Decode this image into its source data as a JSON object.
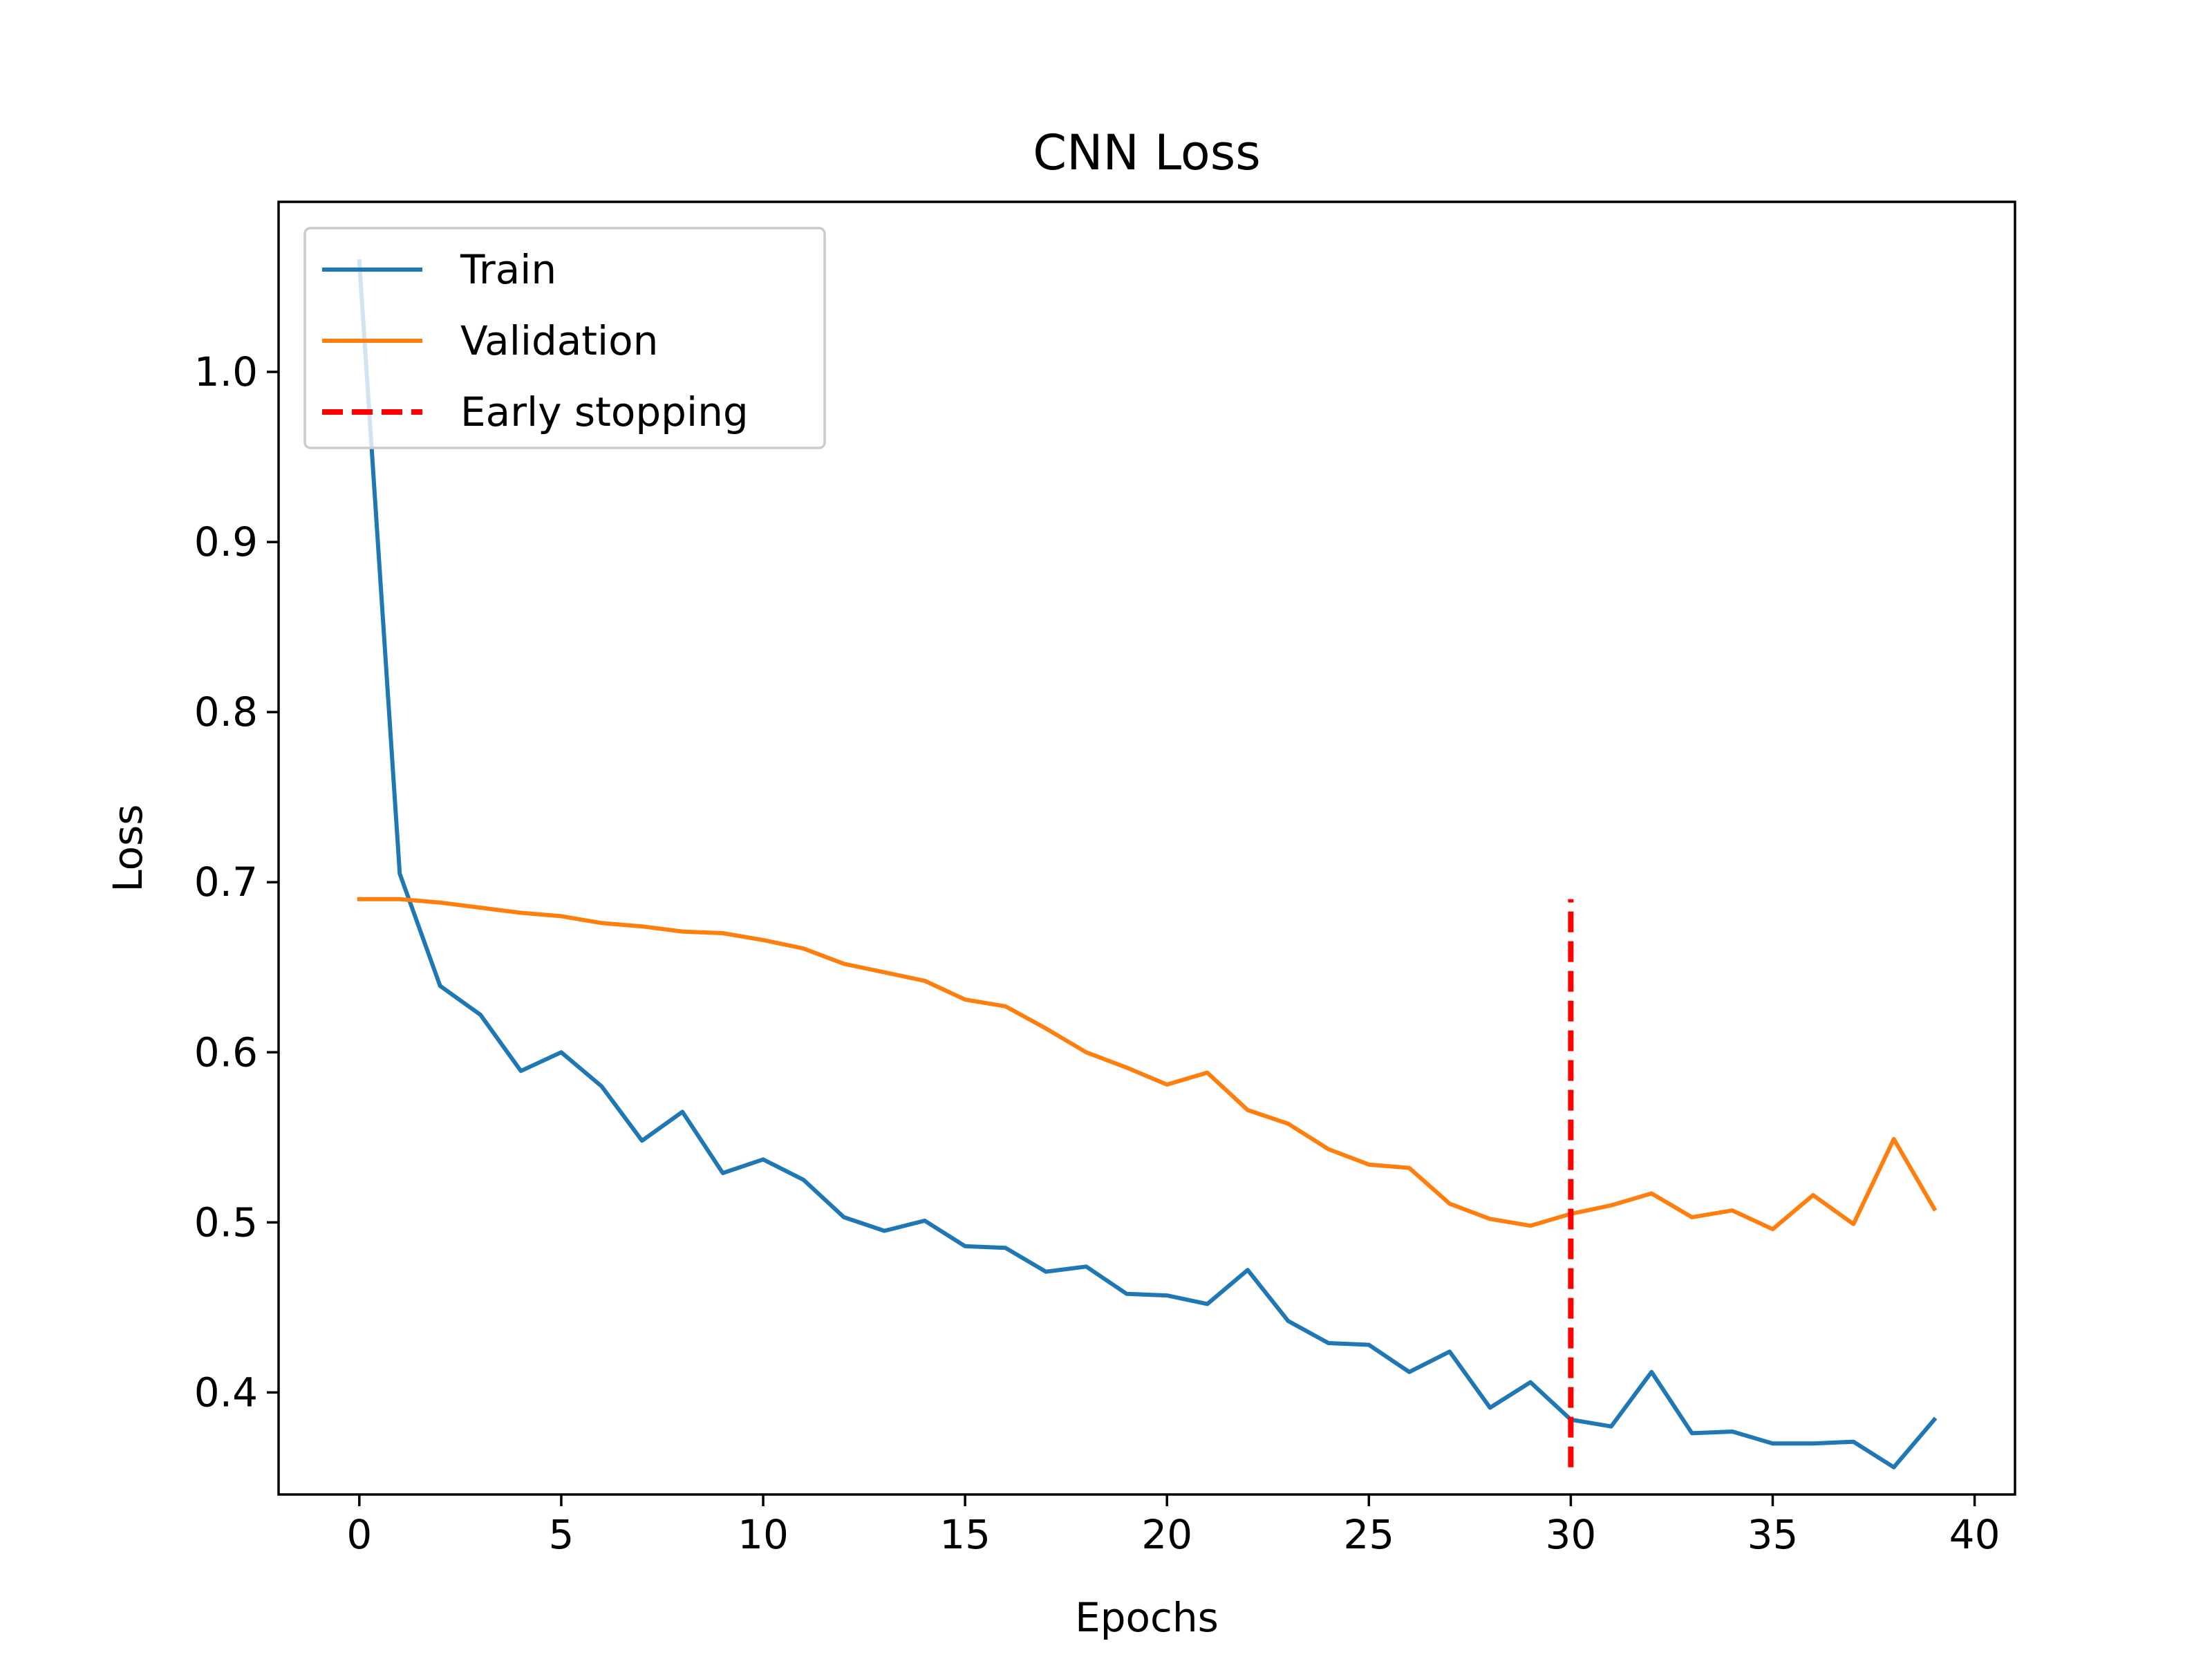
{
  "chart_data": {
    "type": "line",
    "title": "CNN Loss",
    "xlabel": "Epochs",
    "ylabel": "Loss",
    "xlim": [
      -2,
      41
    ],
    "ylim": [
      0.34,
      1.1
    ],
    "xticks": [
      0,
      5,
      10,
      15,
      20,
      25,
      30,
      35,
      40
    ],
    "xtick_labels": [
      "0",
      "5",
      "10",
      "15",
      "20",
      "25",
      "30",
      "35",
      "40"
    ],
    "yticks": [
      0.4,
      0.5,
      0.6,
      0.7,
      0.8,
      0.9,
      1.0
    ],
    "ytick_labels": [
      "0.4",
      "0.5",
      "0.6",
      "0.7",
      "0.8",
      "0.9",
      "1.0"
    ],
    "grid": false,
    "legend_position": "upper-left",
    "series": [
      {
        "name": "Train",
        "color": "#1f77b4",
        "x": [
          0,
          1,
          2,
          3,
          4,
          5,
          6,
          7,
          8,
          9,
          10,
          11,
          12,
          13,
          14,
          15,
          16,
          17,
          18,
          19,
          20,
          21,
          22,
          23,
          24,
          25,
          26,
          27,
          28,
          29,
          30,
          31,
          32,
          33,
          34,
          35,
          36,
          37,
          38,
          39
        ],
        "y": [
          1.065,
          0.705,
          0.639,
          0.622,
          0.589,
          0.6,
          0.58,
          0.548,
          0.565,
          0.529,
          0.537,
          0.525,
          0.503,
          0.495,
          0.501,
          0.486,
          0.485,
          0.471,
          0.474,
          0.458,
          0.457,
          0.452,
          0.472,
          0.442,
          0.429,
          0.428,
          0.412,
          0.424,
          0.391,
          0.406,
          0.384,
          0.38,
          0.412,
          0.376,
          0.377,
          0.37,
          0.37,
          0.371,
          0.356,
          0.384
        ]
      },
      {
        "name": "Validation",
        "color": "#ff7f0e",
        "x": [
          0,
          1,
          2,
          3,
          4,
          5,
          6,
          7,
          8,
          9,
          10,
          11,
          12,
          13,
          14,
          15,
          16,
          17,
          18,
          19,
          20,
          21,
          22,
          23,
          24,
          25,
          26,
          27,
          28,
          29,
          30,
          31,
          32,
          33,
          34,
          35,
          36,
          37,
          38,
          39
        ],
        "y": [
          0.69,
          0.69,
          0.688,
          0.685,
          0.682,
          0.68,
          0.676,
          0.674,
          0.671,
          0.67,
          0.666,
          0.661,
          0.652,
          0.647,
          0.642,
          0.631,
          0.627,
          0.614,
          0.6,
          0.591,
          0.581,
          0.588,
          0.566,
          0.558,
          0.543,
          0.534,
          0.532,
          0.511,
          0.502,
          0.498,
          0.505,
          0.51,
          0.517,
          0.503,
          0.507,
          0.496,
          0.516,
          0.499,
          0.549,
          0.508
        ]
      },
      {
        "name": "Early stopping",
        "color": "#ff0000",
        "style": "dashed",
        "x": [
          30,
          30
        ],
        "y": [
          0.356,
          0.69
        ]
      }
    ]
  }
}
